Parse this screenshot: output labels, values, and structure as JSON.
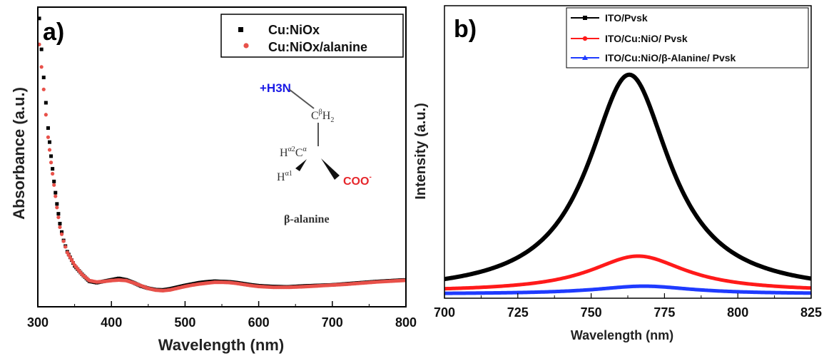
{
  "chart_data": [
    {
      "type": "scatter",
      "panel": "a)",
      "xlabel": "Wavelength (nm)",
      "ylabel": "Absorbance (a.u.)",
      "xlim": [
        300,
        800
      ],
      "ylim": [
        0,
        1
      ],
      "yticks_shown": false,
      "xticks": [
        "300",
        "400",
        "500",
        "600",
        "700",
        "800"
      ],
      "legend_position": "top-right",
      "series": [
        {
          "name": "Cu:NiOx",
          "color": "#000000",
          "marker": "square",
          "x": [
            302,
            305,
            308,
            311,
            314,
            318,
            322,
            326,
            330,
            335,
            340,
            350,
            360,
            370,
            380,
            390,
            400,
            410,
            420,
            430,
            440,
            450,
            460,
            470,
            480,
            490,
            500,
            510,
            520,
            530,
            540,
            550,
            560,
            570,
            580,
            590,
            600,
            620,
            640,
            660,
            680,
            700,
            720,
            740,
            760,
            780,
            800
          ],
          "y": [
            0.97,
            0.86,
            0.76,
            0.67,
            0.58,
            0.48,
            0.39,
            0.31,
            0.24,
            0.18,
            0.14,
            0.09,
            0.06,
            0.035,
            0.03,
            0.035,
            0.04,
            0.045,
            0.04,
            0.03,
            0.018,
            0.01,
            0.005,
            0.004,
            0.008,
            0.014,
            0.02,
            0.025,
            0.03,
            0.033,
            0.035,
            0.034,
            0.033,
            0.03,
            0.026,
            0.022,
            0.019,
            0.016,
            0.015,
            0.018,
            0.02,
            0.022,
            0.026,
            0.03,
            0.034,
            0.037,
            0.04
          ]
        },
        {
          "name": "Cu:NiOx/alanine",
          "color": "#e8514a",
          "marker": "circle",
          "x": [
            302,
            305,
            308,
            311,
            314,
            318,
            322,
            326,
            330,
            335,
            340,
            350,
            360,
            370,
            380,
            390,
            400,
            410,
            420,
            430,
            440,
            450,
            460,
            470,
            480,
            490,
            500,
            510,
            520,
            530,
            540,
            550,
            560,
            570,
            580,
            590,
            600,
            620,
            640,
            660,
            680,
            700,
            720,
            740,
            760,
            780,
            800
          ],
          "y": [
            0.88,
            0.8,
            0.72,
            0.63,
            0.55,
            0.46,
            0.38,
            0.3,
            0.23,
            0.18,
            0.14,
            0.095,
            0.062,
            0.04,
            0.035,
            0.037,
            0.04,
            0.042,
            0.04,
            0.032,
            0.022,
            0.012,
            0.006,
            0.004,
            0.007,
            0.013,
            0.019,
            0.024,
            0.028,
            0.031,
            0.034,
            0.034,
            0.033,
            0.03,
            0.026,
            0.022,
            0.019,
            0.016,
            0.016,
            0.018,
            0.021,
            0.024,
            0.027,
            0.031,
            0.035,
            0.038,
            0.041
          ]
        }
      ],
      "inset": {
        "amine": "+H3N",
        "cb": "C",
        "cb_sup": "β",
        "cb_h": "H",
        "cb_h_sub": "2",
        "ca_h2": "H",
        "ca_h2_sup": "α2",
        "ca": "C",
        "ca_sup": "α",
        "ca_h1": "H",
        "ca_h1_sup": "α1",
        "carboxylate": "COO",
        "carboxylate_sup": "-",
        "name": "β-alanine",
        "amine_color": "#1a1ae6",
        "carboxylate_color": "#e6262b"
      }
    },
    {
      "type": "line",
      "panel": "b)",
      "xlabel": "Wavelength (nm)",
      "ylabel": "Intensity (a.u.)",
      "xlim": [
        700,
        825
      ],
      "ylim": [
        0,
        1
      ],
      "yticks_shown": false,
      "xticks": [
        "700",
        "725",
        "750",
        "775",
        "800",
        "825"
      ],
      "legend_position": "top",
      "series": [
        {
          "name": "ITO/Pvsk",
          "color": "#000000",
          "peak_x": 763,
          "amplitude": 0.985,
          "fwhm": 34,
          "baseline": 0.0
        },
        {
          "name": "ITO/Cu:NiO/ Pvsk",
          "color": "#ff1a1a",
          "peak_x": 766,
          "amplitude": 0.16,
          "fwhm": 40,
          "baseline": 0.01
        },
        {
          "name": "ITO/Cu:NiO/β-Alanine/ Pvsk",
          "color": "#1f3bff",
          "peak_x": 768,
          "amplitude": 0.035,
          "fwhm": 40,
          "baseline": 0.0
        }
      ]
    }
  ]
}
